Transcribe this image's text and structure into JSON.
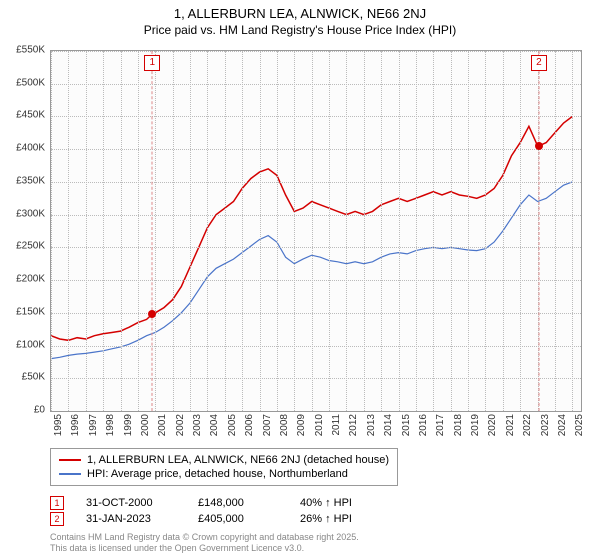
{
  "title": "1, ALLERBURN LEA, ALNWICK, NE66 2NJ",
  "subtitle": "Price paid vs. HM Land Registry's House Price Index (HPI)",
  "chart": {
    "type": "line",
    "background_color": "#fcfcfc",
    "grid_color": "#bbbbbb",
    "text_color": "#333333",
    "label_fontsize": 10,
    "title_fontsize": 13,
    "xlim": [
      1995,
      2025.5
    ],
    "ylim": [
      0,
      550
    ],
    "ytick_step": 50,
    "yticks": [
      "£0",
      "£50K",
      "£100K",
      "£150K",
      "£200K",
      "£250K",
      "£300K",
      "£350K",
      "£400K",
      "£450K",
      "£500K",
      "£550K"
    ],
    "xticks": [
      1995,
      1996,
      1997,
      1998,
      1999,
      2000,
      2001,
      2002,
      2003,
      2004,
      2005,
      2006,
      2007,
      2008,
      2009,
      2010,
      2011,
      2012,
      2013,
      2014,
      2015,
      2016,
      2017,
      2018,
      2019,
      2020,
      2021,
      2022,
      2023,
      2024,
      2025
    ],
    "series": [
      {
        "name": "1, ALLERBURN LEA, ALNWICK, NE66 2NJ (detached house)",
        "color": "#d40000",
        "line_width": 1.5,
        "points": [
          [
            1995.0,
            115
          ],
          [
            1995.5,
            110
          ],
          [
            1996.0,
            108
          ],
          [
            1996.5,
            112
          ],
          [
            1997.0,
            110
          ],
          [
            1997.5,
            115
          ],
          [
            1998.0,
            118
          ],
          [
            1998.5,
            120
          ],
          [
            1999.0,
            122
          ],
          [
            1999.5,
            128
          ],
          [
            2000.0,
            135
          ],
          [
            2000.5,
            140
          ],
          [
            2000.83,
            148
          ],
          [
            2001.0,
            150
          ],
          [
            2001.5,
            158
          ],
          [
            2002.0,
            170
          ],
          [
            2002.5,
            190
          ],
          [
            2003.0,
            220
          ],
          [
            2003.5,
            250
          ],
          [
            2004.0,
            280
          ],
          [
            2004.5,
            300
          ],
          [
            2005.0,
            310
          ],
          [
            2005.5,
            320
          ],
          [
            2006.0,
            340
          ],
          [
            2006.5,
            355
          ],
          [
            2007.0,
            365
          ],
          [
            2007.5,
            370
          ],
          [
            2008.0,
            360
          ],
          [
            2008.5,
            330
          ],
          [
            2009.0,
            305
          ],
          [
            2009.5,
            310
          ],
          [
            2010.0,
            320
          ],
          [
            2010.5,
            315
          ],
          [
            2011.0,
            310
          ],
          [
            2011.5,
            305
          ],
          [
            2012.0,
            300
          ],
          [
            2012.5,
            305
          ],
          [
            2013.0,
            300
          ],
          [
            2013.5,
            305
          ],
          [
            2014.0,
            315
          ],
          [
            2014.5,
            320
          ],
          [
            2015.0,
            325
          ],
          [
            2015.5,
            320
          ],
          [
            2016.0,
            325
          ],
          [
            2016.5,
            330
          ],
          [
            2017.0,
            335
          ],
          [
            2017.5,
            330
          ],
          [
            2018.0,
            335
          ],
          [
            2018.5,
            330
          ],
          [
            2019.0,
            328
          ],
          [
            2019.5,
            325
          ],
          [
            2020.0,
            330
          ],
          [
            2020.5,
            340
          ],
          [
            2021.0,
            360
          ],
          [
            2021.5,
            390
          ],
          [
            2022.0,
            410
          ],
          [
            2022.5,
            435
          ],
          [
            2023.0,
            405
          ],
          [
            2023.08,
            405
          ],
          [
            2023.5,
            410
          ],
          [
            2024.0,
            425
          ],
          [
            2024.5,
            440
          ],
          [
            2025.0,
            450
          ]
        ]
      },
      {
        "name": "HPI: Average price, detached house, Northumberland",
        "color": "#4a74c9",
        "line_width": 1.2,
        "points": [
          [
            1995.0,
            80
          ],
          [
            1995.5,
            82
          ],
          [
            1996.0,
            85
          ],
          [
            1996.5,
            87
          ],
          [
            1997.0,
            88
          ],
          [
            1997.5,
            90
          ],
          [
            1998.0,
            92
          ],
          [
            1998.5,
            95
          ],
          [
            1999.0,
            98
          ],
          [
            1999.5,
            102
          ],
          [
            2000.0,
            108
          ],
          [
            2000.5,
            115
          ],
          [
            2001.0,
            120
          ],
          [
            2001.5,
            128
          ],
          [
            2002.0,
            138
          ],
          [
            2002.5,
            150
          ],
          [
            2003.0,
            165
          ],
          [
            2003.5,
            185
          ],
          [
            2004.0,
            205
          ],
          [
            2004.5,
            218
          ],
          [
            2005.0,
            225
          ],
          [
            2005.5,
            232
          ],
          [
            2006.0,
            242
          ],
          [
            2006.5,
            252
          ],
          [
            2007.0,
            262
          ],
          [
            2007.5,
            268
          ],
          [
            2008.0,
            258
          ],
          [
            2008.5,
            235
          ],
          [
            2009.0,
            225
          ],
          [
            2009.5,
            232
          ],
          [
            2010.0,
            238
          ],
          [
            2010.5,
            235
          ],
          [
            2011.0,
            230
          ],
          [
            2011.5,
            228
          ],
          [
            2012.0,
            225
          ],
          [
            2012.5,
            228
          ],
          [
            2013.0,
            225
          ],
          [
            2013.5,
            228
          ],
          [
            2014.0,
            235
          ],
          [
            2014.5,
            240
          ],
          [
            2015.0,
            242
          ],
          [
            2015.5,
            240
          ],
          [
            2016.0,
            245
          ],
          [
            2016.5,
            248
          ],
          [
            2017.0,
            250
          ],
          [
            2017.5,
            248
          ],
          [
            2018.0,
            250
          ],
          [
            2018.5,
            248
          ],
          [
            2019.0,
            246
          ],
          [
            2019.5,
            245
          ],
          [
            2020.0,
            248
          ],
          [
            2020.5,
            258
          ],
          [
            2021.0,
            275
          ],
          [
            2021.5,
            295
          ],
          [
            2022.0,
            315
          ],
          [
            2022.5,
            330
          ],
          [
            2023.0,
            320
          ],
          [
            2023.5,
            325
          ],
          [
            2024.0,
            335
          ],
          [
            2024.5,
            345
          ],
          [
            2025.0,
            350
          ]
        ]
      }
    ],
    "markers": [
      {
        "num": "1",
        "x": 2000.83,
        "y": 148,
        "color": "#d40000"
      },
      {
        "num": "2",
        "x": 2023.08,
        "y": 405,
        "color": "#d40000"
      }
    ]
  },
  "legend": {
    "items": [
      {
        "color": "#d40000",
        "label": "1, ALLERBURN LEA, ALNWICK, NE66 2NJ (detached house)"
      },
      {
        "color": "#4a74c9",
        "label": "HPI: Average price, detached house, Northumberland"
      }
    ]
  },
  "marker_rows": [
    {
      "num": "1",
      "date": "31-OCT-2000",
      "price": "£148,000",
      "pct": "40% ↑ HPI"
    },
    {
      "num": "2",
      "date": "31-JAN-2023",
      "price": "£405,000",
      "pct": "26% ↑ HPI"
    }
  ],
  "footer_line1": "Contains HM Land Registry data © Crown copyright and database right 2025.",
  "footer_line2": "This data is licensed under the Open Government Licence v3.0."
}
